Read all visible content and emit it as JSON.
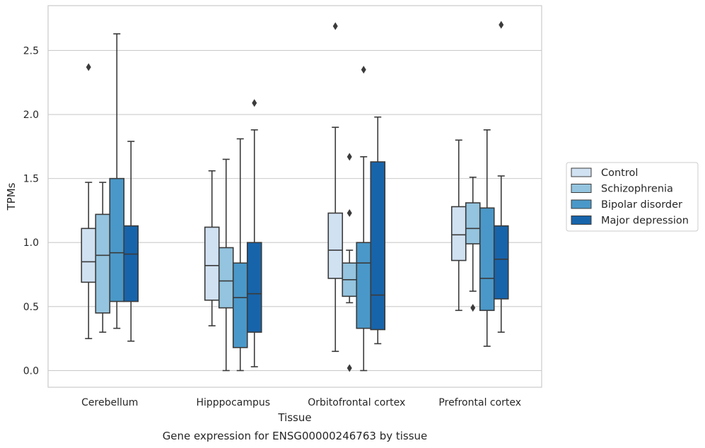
{
  "chart_data": {
    "type": "boxplot",
    "title": "",
    "caption": "Gene expression for ENSG00000246763 by tissue",
    "xlabel": "Tissue",
    "ylabel": "TPMs",
    "ylim": [
      -0.13,
      2.85
    ],
    "yticks": [
      0.0,
      0.5,
      1.0,
      1.5,
      2.0,
      2.5
    ],
    "ytick_labels": [
      "0.0",
      "0.5",
      "1.0",
      "1.5",
      "2.0",
      "2.5"
    ],
    "grid": "horizontal",
    "legend_position": "right",
    "categories": [
      "Cerebellum",
      "Hipppocampus",
      "Orbitofrontal cortex",
      "Prefrontal cortex"
    ],
    "series": [
      {
        "name": "Control",
        "color": "#d0e1f2",
        "boxes": [
          {
            "q1": 0.69,
            "median": 0.85,
            "q3": 1.11,
            "whisker_low": 0.25,
            "whisker_high": 1.47,
            "outliers": [
              2.37
            ]
          },
          {
            "q1": 0.55,
            "median": 0.82,
            "q3": 1.12,
            "whisker_low": 0.35,
            "whisker_high": 1.56,
            "outliers": []
          },
          {
            "q1": 0.72,
            "median": 0.94,
            "q3": 1.23,
            "whisker_low": 0.15,
            "whisker_high": 1.9,
            "outliers": [
              2.69
            ]
          },
          {
            "q1": 0.86,
            "median": 1.06,
            "q3": 1.28,
            "whisker_low": 0.47,
            "whisker_high": 1.8,
            "outliers": []
          }
        ]
      },
      {
        "name": "Schizophrenia",
        "color": "#94c4df",
        "boxes": [
          {
            "q1": 0.45,
            "median": 0.9,
            "q3": 1.22,
            "whisker_low": 0.3,
            "whisker_high": 1.47,
            "outliers": []
          },
          {
            "q1": 0.49,
            "median": 0.7,
            "q3": 0.96,
            "whisker_low": 0.0,
            "whisker_high": 1.65,
            "outliers": []
          },
          {
            "q1": 0.58,
            "median": 0.71,
            "q3": 0.84,
            "whisker_low": 0.53,
            "whisker_high": 0.94,
            "outliers": [
              1.67,
              1.23,
              0.02
            ]
          },
          {
            "q1": 0.99,
            "median": 1.11,
            "q3": 1.31,
            "whisker_low": 0.62,
            "whisker_high": 1.51,
            "outliers": [
              0.49
            ]
          }
        ]
      },
      {
        "name": "Bipolar disorder",
        "color": "#4a98c9",
        "boxes": [
          {
            "q1": 0.54,
            "median": 0.92,
            "q3": 1.5,
            "whisker_low": 0.33,
            "whisker_high": 2.63,
            "outliers": []
          },
          {
            "q1": 0.18,
            "median": 0.57,
            "q3": 0.84,
            "whisker_low": 0.0,
            "whisker_high": 1.81,
            "outliers": []
          },
          {
            "q1": 0.33,
            "median": 0.84,
            "q3": 1.0,
            "whisker_low": 0.0,
            "whisker_high": 1.67,
            "outliers": [
              2.35
            ]
          },
          {
            "q1": 0.47,
            "median": 0.72,
            "q3": 1.27,
            "whisker_low": 0.19,
            "whisker_high": 1.88,
            "outliers": []
          }
        ]
      },
      {
        "name": "Major depression",
        "color": "#1764ab",
        "boxes": [
          {
            "q1": 0.54,
            "median": 0.91,
            "q3": 1.13,
            "whisker_low": 0.23,
            "whisker_high": 1.79,
            "outliers": []
          },
          {
            "q1": 0.3,
            "median": 0.6,
            "q3": 1.0,
            "whisker_low": 0.03,
            "whisker_high": 1.88,
            "outliers": [
              2.09
            ]
          },
          {
            "q1": 0.32,
            "median": 0.59,
            "q3": 1.63,
            "whisker_low": 0.21,
            "whisker_high": 1.98,
            "outliers": []
          },
          {
            "q1": 0.56,
            "median": 0.87,
            "q3": 1.13,
            "whisker_low": 0.3,
            "whisker_high": 1.52,
            "outliers": [
              2.7
            ]
          }
        ]
      }
    ]
  }
}
